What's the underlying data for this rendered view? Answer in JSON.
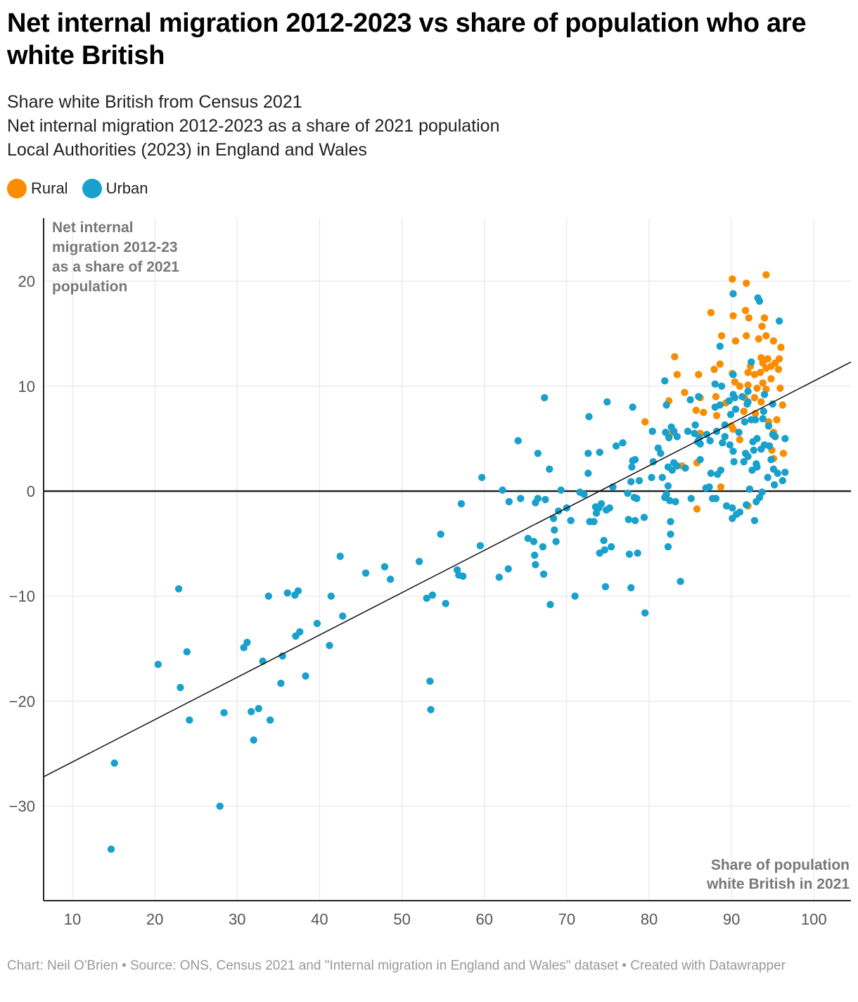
{
  "title": "Net internal migration 2012-2023 vs share of population who are white British",
  "subtitle_lines": [
    "Share white British from Census 2021",
    "Net internal migration 2012-2023 as a share of 2021 population",
    "Local Authorities (2023) in England and Wales"
  ],
  "legend": [
    {
      "label": "Rural",
      "color": "#fa8c00"
    },
    {
      "label": "Urban",
      "color": "#18a1cd"
    }
  ],
  "footer": "Chart: Neil O'Brien • Source: ONS, Census 2021 and \"Internal migration in England and Wales\" dataset  • Created with Datawrapper",
  "chart_data": {
    "type": "scatter",
    "title": "Net internal migration 2012-2023 vs share of population who are white British",
    "xlabel": "Share of population white British in 2021",
    "ylabel": "Net internal migration 2012-23 as a share of 2021 population",
    "ylabel_lines": [
      "Net internal",
      "migration 2012-23",
      "as a share of 2021",
      "population"
    ],
    "xlabel_lines": [
      "Share of population",
      "white British in 2021"
    ],
    "xlim": [
      6.5,
      104.5
    ],
    "ylim": [
      -39,
      26
    ],
    "x_ticks": [
      10,
      20,
      30,
      40,
      50,
      60,
      70,
      80,
      90,
      100
    ],
    "y_ticks": [
      20,
      10,
      0,
      -10,
      -20,
      -30
    ],
    "y_tick_labels": [
      "20",
      "10",
      "0",
      "−10",
      "−20",
      "−30"
    ],
    "grid": true,
    "trendline": {
      "x1": 6.5,
      "y1": -27.2,
      "x2": 104.5,
      "y2": 12.3
    },
    "series": [
      {
        "name": "Rural",
        "color": "#fa8c00",
        "points": [
          [
            90.1,
            20.2
          ],
          [
            91.8,
            19.8
          ],
          [
            94.2,
            20.6
          ],
          [
            87.5,
            17.0
          ],
          [
            90.2,
            16.7
          ],
          [
            91.7,
            17.2
          ],
          [
            92.1,
            16.5
          ],
          [
            94.0,
            16.5
          ],
          [
            93.7,
            15.7
          ],
          [
            88.8,
            14.8
          ],
          [
            90.5,
            14.3
          ],
          [
            91.8,
            14.8
          ],
          [
            93.3,
            14.5
          ],
          [
            94.2,
            14.8
          ],
          [
            95.1,
            14.3
          ],
          [
            96.0,
            13.7
          ],
          [
            83.1,
            12.8
          ],
          [
            88.6,
            12.1
          ],
          [
            93.6,
            12.7
          ],
          [
            94.4,
            12.6
          ],
          [
            95.8,
            12.6
          ],
          [
            92.3,
            11.9
          ],
          [
            93.8,
            12.2
          ],
          [
            94.8,
            11.9
          ],
          [
            95.3,
            12.2
          ],
          [
            87.9,
            11.6
          ],
          [
            83.4,
            11.1
          ],
          [
            86.0,
            11.1
          ],
          [
            90.1,
            11.2
          ],
          [
            92.0,
            11.3
          ],
          [
            92.8,
            11.1
          ],
          [
            93.5,
            11.3
          ],
          [
            94.2,
            11.7
          ],
          [
            95.7,
            11.6
          ],
          [
            90.4,
            10.4
          ],
          [
            91.0,
            10.0
          ],
          [
            93.1,
            9.8
          ],
          [
            93.8,
            10.3
          ],
          [
            94.8,
            10.7
          ],
          [
            92.0,
            10.1
          ],
          [
            84.3,
            9.4
          ],
          [
            88.1,
            9.0
          ],
          [
            91.6,
            8.9
          ],
          [
            92.8,
            8.9
          ],
          [
            94.2,
            9.7
          ],
          [
            95.9,
            9.8
          ],
          [
            82.4,
            8.6
          ],
          [
            86.2,
            8.9
          ],
          [
            89.3,
            8.4
          ],
          [
            93.6,
            8.5
          ],
          [
            96.2,
            8.2
          ],
          [
            85.7,
            7.7
          ],
          [
            86.6,
            7.5
          ],
          [
            91.5,
            7.6
          ],
          [
            92.9,
            7.4
          ],
          [
            88.2,
            7.2
          ],
          [
            79.5,
            6.6
          ],
          [
            90.0,
            6.2
          ],
          [
            94.5,
            6.6
          ],
          [
            95.5,
            6.8
          ],
          [
            82.8,
            5.6
          ],
          [
            90.2,
            5.9
          ],
          [
            95.1,
            5.6
          ],
          [
            86.2,
            5.5
          ],
          [
            91.0,
            4.9
          ],
          [
            94.9,
            3.9
          ],
          [
            96.3,
            3.6
          ],
          [
            95.1,
            3.1
          ],
          [
            85.8,
            2.7
          ],
          [
            84.0,
            2.4
          ],
          [
            88.7,
            0.4
          ],
          [
            92.0,
            -1.4
          ],
          [
            85.8,
            -1.7
          ]
        ]
      },
      {
        "name": "Urban",
        "color": "#18a1cd",
        "points": [
          [
            14.7,
            -34.1
          ],
          [
            15.1,
            -25.9
          ],
          [
            27.9,
            -30.0
          ],
          [
            20.4,
            -16.5
          ],
          [
            22.9,
            -9.3
          ],
          [
            23.1,
            -18.7
          ],
          [
            23.9,
            -15.3
          ],
          [
            24.2,
            -21.8
          ],
          [
            28.4,
            -21.1
          ],
          [
            30.8,
            -14.9
          ],
          [
            31.2,
            -14.4
          ],
          [
            31.7,
            -21.0
          ],
          [
            32.0,
            -23.7
          ],
          [
            32.6,
            -20.7
          ],
          [
            33.1,
            -16.2
          ],
          [
            33.8,
            -10.0
          ],
          [
            34.0,
            -21.8
          ],
          [
            35.3,
            -18.3
          ],
          [
            35.5,
            -15.7
          ],
          [
            36.1,
            -9.7
          ],
          [
            37.0,
            -9.9
          ],
          [
            37.1,
            -13.8
          ],
          [
            37.4,
            -9.5
          ],
          [
            37.6,
            -13.4
          ],
          [
            38.3,
            -17.6
          ],
          [
            39.7,
            -12.6
          ],
          [
            41.2,
            -14.7
          ],
          [
            41.4,
            -10.0
          ],
          [
            42.5,
            -6.2
          ],
          [
            42.8,
            -11.9
          ],
          [
            45.6,
            -7.8
          ],
          [
            47.9,
            -7.2
          ],
          [
            48.6,
            -8.4
          ],
          [
            52.1,
            -6.7
          ],
          [
            53.0,
            -10.2
          ],
          [
            53.4,
            -18.1
          ],
          [
            53.5,
            -20.8
          ],
          [
            53.7,
            -9.9
          ],
          [
            54.7,
            -4.1
          ],
          [
            55.3,
            -10.7
          ],
          [
            56.7,
            -7.5
          ],
          [
            56.9,
            -8.0
          ],
          [
            57.2,
            -1.2
          ],
          [
            57.4,
            -8.1
          ],
          [
            59.5,
            -5.2
          ],
          [
            59.7,
            1.3
          ],
          [
            61.8,
            -8.2
          ],
          [
            62.2,
            0.1
          ],
          [
            62.9,
            -7.4
          ],
          [
            63.0,
            -1.0
          ],
          [
            64.1,
            4.8
          ],
          [
            64.4,
            -0.7
          ],
          [
            65.3,
            -4.5
          ],
          [
            66.0,
            -4.8
          ],
          [
            66.1,
            -6.1
          ],
          [
            66.2,
            -7.0
          ],
          [
            66.2,
            -1.1
          ],
          [
            66.5,
            -0.7
          ],
          [
            66.5,
            3.6
          ],
          [
            67.1,
            -5.3
          ],
          [
            67.2,
            -7.9
          ],
          [
            67.3,
            8.9
          ],
          [
            67.4,
            -0.8
          ],
          [
            68.0,
            -10.8
          ],
          [
            67.9,
            2.1
          ],
          [
            68.4,
            -2.6
          ],
          [
            68.5,
            -3.7
          ],
          [
            68.7,
            -4.8
          ],
          [
            69.0,
            -1.9
          ],
          [
            69.3,
            0.1
          ],
          [
            70.0,
            -1.6
          ],
          [
            70.5,
            -2.8
          ],
          [
            71.0,
            -10.0
          ],
          [
            71.6,
            -0.1
          ],
          [
            72.1,
            -0.3
          ],
          [
            72.6,
            1.7
          ],
          [
            72.6,
            3.6
          ],
          [
            72.7,
            7.1
          ],
          [
            72.8,
            -2.9
          ],
          [
            73.3,
            -2.9
          ],
          [
            73.5,
            -1.5
          ],
          [
            73.6,
            -2.1
          ],
          [
            73.9,
            -1.6
          ],
          [
            74.0,
            -5.9
          ],
          [
            74.0,
            3.7
          ],
          [
            74.2,
            -1.2
          ],
          [
            74.5,
            -4.7
          ],
          [
            74.6,
            -5.6
          ],
          [
            74.7,
            -9.1
          ],
          [
            74.8,
            -1.8
          ],
          [
            74.9,
            8.5
          ],
          [
            75.2,
            -1.6
          ],
          [
            75.4,
            -5.3
          ],
          [
            75.6,
            0.4
          ],
          [
            76.0,
            4.3
          ],
          [
            76.8,
            4.6
          ],
          [
            77.4,
            -0.2
          ],
          [
            77.5,
            -2.7
          ],
          [
            77.6,
            -6.0
          ],
          [
            77.8,
            -9.2
          ],
          [
            77.8,
            0.9
          ],
          [
            77.9,
            2.3
          ],
          [
            78.0,
            2.9
          ],
          [
            78.0,
            8.0
          ],
          [
            78.2,
            -0.6
          ],
          [
            78.3,
            -2.8
          ],
          [
            78.3,
            3.0
          ],
          [
            78.5,
            -0.7
          ],
          [
            78.6,
            -5.9
          ],
          [
            78.8,
            1.0
          ],
          [
            79.4,
            -2.5
          ],
          [
            79.5,
            -11.6
          ],
          [
            80.3,
            1.3
          ],
          [
            80.4,
            5.7
          ],
          [
            80.5,
            2.8
          ],
          [
            81.1,
            4.1
          ],
          [
            81.4,
            3.6
          ],
          [
            81.6,
            1.3
          ],
          [
            81.9,
            10.5
          ],
          [
            81.9,
            -0.6
          ],
          [
            82.0,
            5.6
          ],
          [
            82.1,
            -0.3
          ],
          [
            82.1,
            8.2
          ],
          [
            82.3,
            0.5
          ],
          [
            82.3,
            2.3
          ],
          [
            82.3,
            -5.3
          ],
          [
            82.4,
            5.1
          ],
          [
            82.5,
            -0.9
          ],
          [
            82.6,
            -2.9
          ],
          [
            82.6,
            -4.1
          ],
          [
            82.7,
            6.1
          ],
          [
            82.8,
            2.0
          ],
          [
            83.0,
            2.7
          ],
          [
            83.0,
            5.7
          ],
          [
            83.2,
            -1.0
          ],
          [
            83.4,
            2.4
          ],
          [
            83.4,
            5.2
          ],
          [
            83.8,
            -8.6
          ],
          [
            84.4,
            2.2
          ],
          [
            84.7,
            5.7
          ],
          [
            85.0,
            8.7
          ],
          [
            85.1,
            -0.7
          ],
          [
            85.5,
            5.5
          ],
          [
            85.6,
            6.3
          ],
          [
            85.9,
            4.7
          ],
          [
            86.0,
            9.0
          ],
          [
            86.1,
            5.1
          ],
          [
            86.2,
            4.5
          ],
          [
            86.2,
            3.0
          ],
          [
            86.9,
            0.3
          ],
          [
            87.0,
            5.4
          ],
          [
            87.3,
            0.4
          ],
          [
            87.4,
            4.8
          ],
          [
            87.5,
            1.7
          ],
          [
            87.7,
            -0.7
          ],
          [
            88.0,
            10.2
          ],
          [
            88.0,
            8.0
          ],
          [
            88.1,
            -0.7
          ],
          [
            88.2,
            5.7
          ],
          [
            88.3,
            1.6
          ],
          [
            88.6,
            13.8
          ],
          [
            88.6,
            8.2
          ],
          [
            88.7,
            2.0
          ],
          [
            88.8,
            10.0
          ],
          [
            88.9,
            4.6
          ],
          [
            89.2,
            6.3
          ],
          [
            89.2,
            5.2
          ],
          [
            89.4,
            -1.4
          ],
          [
            89.7,
            8.6
          ],
          [
            89.8,
            4.4
          ],
          [
            89.9,
            7.3
          ],
          [
            90.1,
            -1.6
          ],
          [
            90.1,
            -2.6
          ],
          [
            90.2,
            18.8
          ],
          [
            90.2,
            11.1
          ],
          [
            90.2,
            9.2
          ],
          [
            90.2,
            3.8
          ],
          [
            90.3,
            2.8
          ],
          [
            90.4,
            8.9
          ],
          [
            90.5,
            7.8
          ],
          [
            90.6,
            -2.2
          ],
          [
            90.9,
            5.6
          ],
          [
            91.0,
            -2.0
          ],
          [
            91.3,
            9.0
          ],
          [
            91.5,
            2.8
          ],
          [
            91.6,
            6.6
          ],
          [
            91.7,
            3.6
          ],
          [
            91.8,
            -1.3
          ],
          [
            91.9,
            8.3
          ],
          [
            92.0,
            8.5
          ],
          [
            92.0,
            9.5
          ],
          [
            92.0,
            3.3
          ],
          [
            92.2,
            0.2
          ],
          [
            92.4,
            12.3
          ],
          [
            92.4,
            6.8
          ],
          [
            92.5,
            2.0
          ],
          [
            92.6,
            4.7
          ],
          [
            92.7,
            3.9
          ],
          [
            92.8,
            -2.8
          ],
          [
            92.9,
            6.8
          ],
          [
            93.0,
            2.6
          ],
          [
            93.0,
            -1.0
          ],
          [
            93.1,
            2.3
          ],
          [
            93.1,
            5.0
          ],
          [
            93.2,
            18.4
          ],
          [
            93.4,
            18.1
          ],
          [
            93.4,
            -0.6
          ],
          [
            93.6,
            4.0
          ],
          [
            93.7,
            -0.1
          ],
          [
            93.8,
            6.9
          ],
          [
            93.9,
            7.6
          ],
          [
            94.0,
            4.4
          ],
          [
            94.0,
            9.2
          ],
          [
            94.4,
            1.3
          ],
          [
            94.5,
            6.2
          ],
          [
            94.6,
            4.3
          ],
          [
            94.8,
            3.0
          ],
          [
            95.0,
            8.3
          ],
          [
            95.0,
            5.4
          ],
          [
            95.1,
            2.1
          ],
          [
            95.2,
            0.6
          ],
          [
            95.3,
            5.2
          ],
          [
            95.6,
            1.7
          ],
          [
            95.8,
            16.2
          ],
          [
            96.2,
            1.0
          ],
          [
            96.5,
            1.8
          ],
          [
            96.5,
            5.0
          ]
        ]
      }
    ]
  }
}
